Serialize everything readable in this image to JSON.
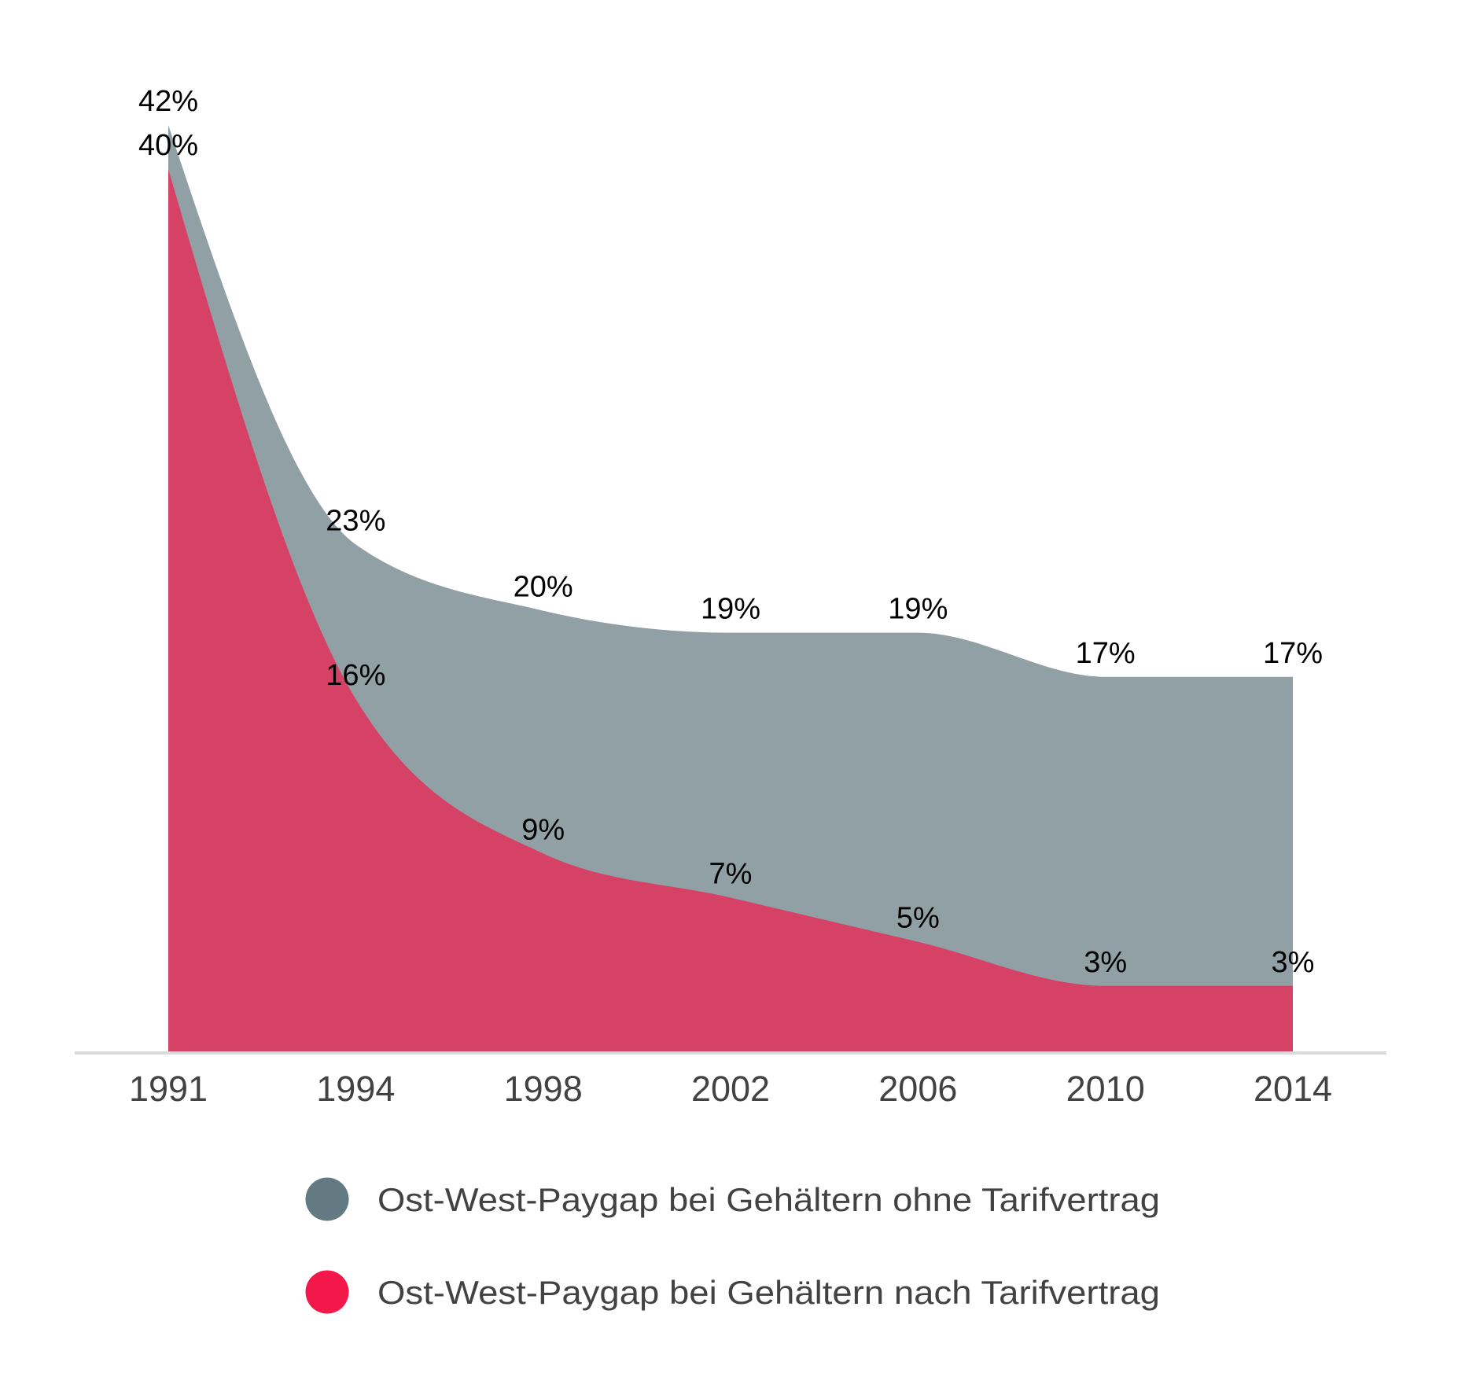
{
  "chart_data": {
    "type": "area",
    "title": "",
    "xlabel": "",
    "ylabel": "",
    "categories": [
      "1991",
      "1994",
      "1998",
      "2002",
      "2006",
      "2010",
      "2014"
    ],
    "ylim": [
      0,
      42
    ],
    "grid": false,
    "legend_position": "bottom",
    "series": [
      {
        "name": "Ost-West-Paygap bei Gehältern ohne Tarifvertrag",
        "values": [
          42,
          23,
          20,
          19,
          19,
          17,
          17
        ],
        "labels": [
          "42%",
          "23%",
          "20%",
          "19%",
          "19%",
          "17%",
          "17%"
        ],
        "area_color": "#91A0A5",
        "legend_color": "#637A82"
      },
      {
        "name": "Ost-West-Paygap bei Gehältern nach Tarifvertrag",
        "values": [
          40,
          16,
          9,
          7,
          5,
          3,
          3
        ],
        "labels": [
          "40%",
          "16%",
          "9%",
          "7%",
          "5%",
          "3%",
          "3%"
        ],
        "area_color": "#D54266",
        "legend_color": "#F2184A"
      }
    ],
    "legend": [
      {
        "label": "Ost-West-Paygap bei Gehältern ohne Tarifvertrag",
        "color": "#637A82"
      },
      {
        "label": "Ost-West-Paygap bei Gehältern nach Tarifvertrag",
        "color": "#F2184A"
      }
    ],
    "axis_color": "#DADADA",
    "tick_label_color": "#424242",
    "value_label_color": "#000000"
  }
}
